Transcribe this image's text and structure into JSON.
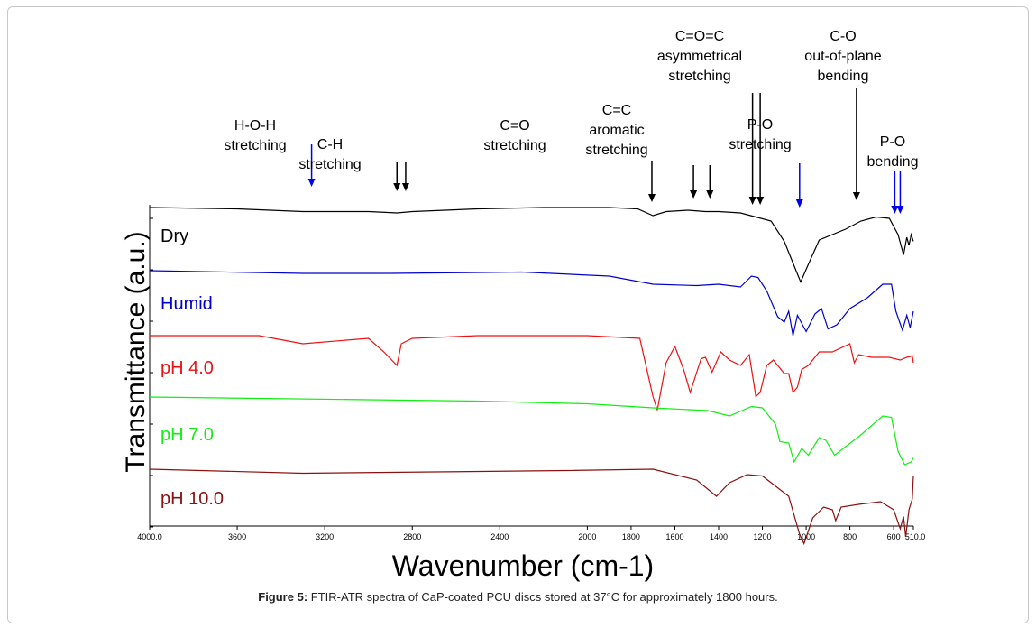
{
  "caption": {
    "label": "Figure 5:",
    "text": "FTIR-ATR spectra of CaP-coated PCU discs stored at 37°C for approximately 1800 hours."
  },
  "chart_data": {
    "type": "line",
    "title": "",
    "xlabel": "Wavenumber (cm-1)",
    "ylabel": "Transmittance (a.u.)",
    "xlim": [
      4000,
      510
    ],
    "x_reversed": true,
    "x_ticks": [
      {
        "value": 4000,
        "label": "4000.0"
      },
      {
        "value": 3600,
        "label": "3600"
      },
      {
        "value": 3200,
        "label": "3200"
      },
      {
        "value": 2800,
        "label": "2800"
      },
      {
        "value": 2400,
        "label": "2400"
      },
      {
        "value": 2000,
        "label": "2000"
      },
      {
        "value": 1800,
        "label": "1800"
      },
      {
        "value": 1600,
        "label": "1600"
      },
      {
        "value": 1400,
        "label": "1400"
      },
      {
        "value": 1200,
        "label": "1200"
      },
      {
        "value": 1000,
        "label": "1000"
      },
      {
        "value": 800,
        "label": "800"
      },
      {
        "value": 600,
        "label": "600"
      },
      {
        "value": 510,
        "label": "510.0"
      }
    ],
    "series": [
      {
        "name": "Dry",
        "color": "#000000",
        "points": [
          [
            4000,
            0.0
          ],
          [
            3600,
            0.01
          ],
          [
            3300,
            0.03
          ],
          [
            3000,
            0.03
          ],
          [
            2870,
            0.04
          ],
          [
            2800,
            0.03
          ],
          [
            2500,
            0.01
          ],
          [
            2200,
            0.0
          ],
          [
            1900,
            0.0
          ],
          [
            1770,
            0.01
          ],
          [
            1700,
            0.06
          ],
          [
            1640,
            0.03
          ],
          [
            1540,
            0.02
          ],
          [
            1460,
            0.03
          ],
          [
            1400,
            0.03
          ],
          [
            1300,
            0.04
          ],
          [
            1230,
            0.07
          ],
          [
            1160,
            0.1
          ],
          [
            1100,
            0.25
          ],
          [
            1050,
            0.45
          ],
          [
            1025,
            0.55
          ],
          [
            990,
            0.42
          ],
          [
            940,
            0.24
          ],
          [
            880,
            0.2
          ],
          [
            820,
            0.16
          ],
          [
            750,
            0.1
          ],
          [
            680,
            0.07
          ],
          [
            620,
            0.08
          ],
          [
            580,
            0.2
          ],
          [
            555,
            0.35
          ],
          [
            540,
            0.22
          ],
          [
            530,
            0.28
          ],
          [
            520,
            0.2
          ],
          [
            510,
            0.25
          ]
        ]
      },
      {
        "name": "Humid",
        "color": "#0000cc",
        "points": [
          [
            4000,
            0.0
          ],
          [
            3300,
            0.02
          ],
          [
            2900,
            0.02
          ],
          [
            2300,
            0.01
          ],
          [
            1900,
            0.04
          ],
          [
            1700,
            0.1
          ],
          [
            1500,
            0.11
          ],
          [
            1400,
            0.1
          ],
          [
            1300,
            0.12
          ],
          [
            1250,
            0.04
          ],
          [
            1220,
            0.05
          ],
          [
            1180,
            0.15
          ],
          [
            1130,
            0.34
          ],
          [
            1100,
            0.38
          ],
          [
            1080,
            0.3
          ],
          [
            1060,
            0.48
          ],
          [
            1040,
            0.33
          ],
          [
            1000,
            0.45
          ],
          [
            960,
            0.32
          ],
          [
            930,
            0.28
          ],
          [
            900,
            0.43
          ],
          [
            860,
            0.4
          ],
          [
            800,
            0.28
          ],
          [
            720,
            0.2
          ],
          [
            650,
            0.1
          ],
          [
            610,
            0.1
          ],
          [
            590,
            0.3
          ],
          [
            560,
            0.44
          ],
          [
            540,
            0.33
          ],
          [
            525,
            0.42
          ],
          [
            510,
            0.3
          ]
        ]
      },
      {
        "name": "pH 4.0",
        "color": "#ee1111",
        "points": [
          [
            4000,
            0.0
          ],
          [
            3500,
            0.0
          ],
          [
            3300,
            0.06
          ],
          [
            3000,
            0.02
          ],
          [
            2930,
            0.12
          ],
          [
            2870,
            0.22
          ],
          [
            2850,
            0.06
          ],
          [
            2800,
            0.02
          ],
          [
            2500,
            0.0
          ],
          [
            2000,
            0.0
          ],
          [
            1760,
            0.02
          ],
          [
            1700,
            0.45
          ],
          [
            1680,
            0.55
          ],
          [
            1640,
            0.2
          ],
          [
            1600,
            0.08
          ],
          [
            1560,
            0.25
          ],
          [
            1530,
            0.42
          ],
          [
            1480,
            0.17
          ],
          [
            1460,
            0.16
          ],
          [
            1430,
            0.27
          ],
          [
            1390,
            0.12
          ],
          [
            1350,
            0.18
          ],
          [
            1300,
            0.22
          ],
          [
            1260,
            0.14
          ],
          [
            1230,
            0.45
          ],
          [
            1210,
            0.42
          ],
          [
            1180,
            0.22
          ],
          [
            1150,
            0.18
          ],
          [
            1100,
            0.28
          ],
          [
            1080,
            0.28
          ],
          [
            1060,
            0.42
          ],
          [
            1040,
            0.38
          ],
          [
            1020,
            0.25
          ],
          [
            990,
            0.22
          ],
          [
            940,
            0.12
          ],
          [
            880,
            0.12
          ],
          [
            800,
            0.06
          ],
          [
            780,
            0.2
          ],
          [
            760,
            0.14
          ],
          [
            700,
            0.16
          ],
          [
            620,
            0.16
          ],
          [
            570,
            0.18
          ],
          [
            540,
            0.16
          ],
          [
            515,
            0.15
          ],
          [
            510,
            0.2
          ]
        ]
      },
      {
        "name": "pH 7.0",
        "color": "#11ee11",
        "points": [
          [
            4000,
            0.0
          ],
          [
            3500,
            0.01
          ],
          [
            3000,
            0.02
          ],
          [
            2500,
            0.03
          ],
          [
            2000,
            0.05
          ],
          [
            1700,
            0.08
          ],
          [
            1450,
            0.1
          ],
          [
            1350,
            0.14
          ],
          [
            1250,
            0.07
          ],
          [
            1200,
            0.08
          ],
          [
            1140,
            0.2
          ],
          [
            1120,
            0.33
          ],
          [
            1080,
            0.34
          ],
          [
            1055,
            0.48
          ],
          [
            1020,
            0.38
          ],
          [
            990,
            0.43
          ],
          [
            940,
            0.3
          ],
          [
            910,
            0.32
          ],
          [
            870,
            0.43
          ],
          [
            750,
            0.28
          ],
          [
            650,
            0.14
          ],
          [
            610,
            0.15
          ],
          [
            580,
            0.4
          ],
          [
            550,
            0.5
          ],
          [
            520,
            0.48
          ],
          [
            510,
            0.45
          ]
        ]
      },
      {
        "name": "pH 10.0",
        "color": "#8b1010",
        "points": [
          [
            4000,
            0.0
          ],
          [
            3300,
            0.03
          ],
          [
            2700,
            0.02
          ],
          [
            2100,
            0.01
          ],
          [
            1700,
            0.0
          ],
          [
            1500,
            0.08
          ],
          [
            1410,
            0.2
          ],
          [
            1350,
            0.1
          ],
          [
            1270,
            0.04
          ],
          [
            1200,
            0.05
          ],
          [
            1080,
            0.2
          ],
          [
            1030,
            0.48
          ],
          [
            1010,
            0.55
          ],
          [
            970,
            0.36
          ],
          [
            920,
            0.28
          ],
          [
            880,
            0.3
          ],
          [
            865,
            0.38
          ],
          [
            840,
            0.28
          ],
          [
            760,
            0.26
          ],
          [
            660,
            0.24
          ],
          [
            600,
            0.3
          ],
          [
            570,
            0.44
          ],
          [
            555,
            0.35
          ],
          [
            545,
            0.5
          ],
          [
            530,
            0.3
          ],
          [
            515,
            0.22
          ],
          [
            510,
            0.05
          ]
        ]
      }
    ],
    "series_labels": [
      "Dry",
      "Humid",
      "pH 4.0",
      "pH 7.0",
      "pH 10.0"
    ],
    "annotations": [
      {
        "text": [
          "H-O-H",
          "stretching"
        ],
        "arrows": [
          3260
        ],
        "color": "#0000ee"
      },
      {
        "text": [
          "C-H",
          "stretching"
        ],
        "arrows": [
          2870,
          2830
        ],
        "color": "#000000"
      },
      {
        "text": [
          "C=O",
          "stretching"
        ],
        "arrows": [
          1705
        ],
        "color": "#000000"
      },
      {
        "text": [
          "C=C",
          "aromatic",
          "stretching"
        ],
        "arrows": [
          1515,
          1440
        ],
        "color": "#000000"
      },
      {
        "text": [
          "C=O=C",
          "asymmetrical",
          "stretching"
        ],
        "arrows": [
          1245,
          1210
        ],
        "color": "#000000"
      },
      {
        "text": [
          "P-O",
          "stretching"
        ],
        "arrows": [
          1030
        ],
        "color": "#0000ee"
      },
      {
        "text": [
          "C-O",
          "out-of-plane",
          "bending"
        ],
        "arrows": [
          770
        ],
        "color": "#000000"
      },
      {
        "text": [
          "P-O",
          "bending"
        ],
        "arrows": [
          595,
          570
        ],
        "color": "#0000ee"
      }
    ]
  }
}
